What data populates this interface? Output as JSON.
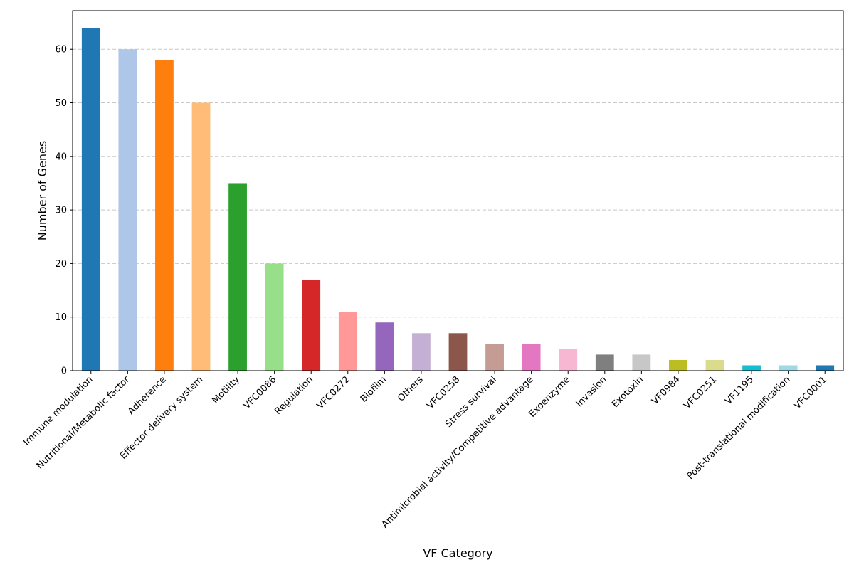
{
  "chart_data": {
    "type": "bar",
    "title": "",
    "xlabel": "VF Category",
    "ylabel": "Number of Genes",
    "ylim": [
      0,
      67.2
    ],
    "yticks": [
      0,
      10,
      20,
      30,
      40,
      50,
      60
    ],
    "grid": "y dashed",
    "categories": [
      "Immune modulation",
      "Nutritional/Metabolic factor",
      "Adherence",
      "Effector delivery system",
      "Motility",
      "VFC0086",
      "Regulation",
      "VFC0272",
      "Biofilm",
      "Others",
      "VFC0258",
      "Stress survival",
      "Antimicrobial activity/Competitive advantage",
      "Exoenzyme",
      "Invasion",
      "Exotoxin",
      "VF0984",
      "VFC0251",
      "VF1195",
      "Post-translational modification",
      "VFC0001"
    ],
    "values": [
      64,
      60,
      58,
      50,
      35,
      20,
      17,
      11,
      9,
      7,
      7,
      5,
      5,
      4,
      3,
      3,
      2,
      2,
      1,
      1,
      1
    ],
    "colors": [
      "#1f77b4",
      "#aec7e8",
      "#ff7f0e",
      "#ffbb78",
      "#2ca02c",
      "#98df8a",
      "#d62728",
      "#ff9896",
      "#9467bd",
      "#c5b0d5",
      "#8c564b",
      "#c49c94",
      "#e377c2",
      "#f7b6d2",
      "#7f7f7f",
      "#c7c7c7",
      "#bcbd22",
      "#dbdb8d",
      "#17becf",
      "#9edae5",
      "#1f77b4"
    ]
  }
}
